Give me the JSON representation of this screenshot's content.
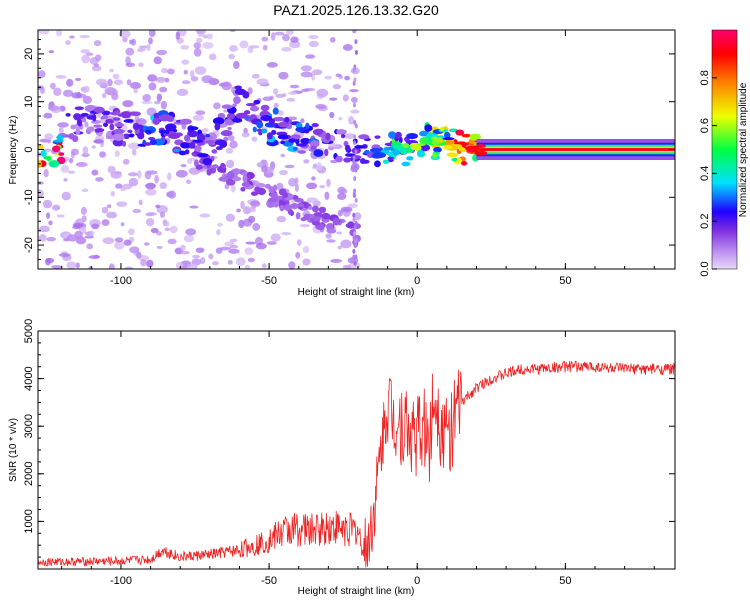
{
  "title": "PAZ1.2025.126.13.32.G20",
  "chart_data": [
    {
      "type": "heatmap",
      "xlabel": "Height of straight line (km)",
      "ylabel": "Frequency (Hz)",
      "xlim": [
        -128,
        87
      ],
      "ylim": [
        -25,
        25
      ],
      "xticks": [
        -100,
        -50,
        0,
        50
      ],
      "yticks": [
        -20,
        -10,
        0,
        10,
        20
      ],
      "colorbar": {
        "label": "Normalized spectral amplitude",
        "range": [
          0,
          1
        ],
        "ticks": [
          0.0,
          0.2,
          0.4,
          0.6,
          0.8
        ],
        "colors": [
          "#e8d8f8",
          "#b888f0",
          "#8030e0",
          "#2000ff",
          "#00e0ff",
          "#00ff40",
          "#f0ff00",
          "#ff8000",
          "#ff0000",
          "#ff0070"
        ]
      },
      "ridge": [
        {
          "x": -120,
          "f": 6,
          "a": 0.25
        },
        {
          "x": -105,
          "f": 5,
          "a": 0.25
        },
        {
          "x": -95,
          "f": 4,
          "a": 0.3
        },
        {
          "x": -88,
          "f": 5,
          "a": 0.4
        },
        {
          "x": -80,
          "f": 3,
          "a": 0.35
        },
        {
          "x": -70,
          "f": 0,
          "a": 0.3
        },
        {
          "x": -60,
          "f": 10,
          "a": 0.3
        },
        {
          "x": -50,
          "f": 5,
          "a": 0.4
        },
        {
          "x": -40,
          "f": 3,
          "a": 0.35
        },
        {
          "x": -30,
          "f": 2,
          "a": 0.3
        },
        {
          "x": -20,
          "f": 0,
          "a": 0.3
        },
        {
          "x": -15,
          "f": -1,
          "a": 0.35
        },
        {
          "x": -5,
          "f": 0,
          "a": 0.55
        },
        {
          "x": 0,
          "f": 1,
          "a": 0.6
        },
        {
          "x": 5,
          "f": 2,
          "a": 0.55
        },
        {
          "x": 10,
          "f": 1,
          "a": 0.75
        },
        {
          "x": 15,
          "f": 0.5,
          "a": 0.85
        },
        {
          "x": 20,
          "f": 0,
          "a": 0.9
        },
        {
          "x": 87,
          "f": 0,
          "a": 0.9
        }
      ]
    },
    {
      "type": "line",
      "xlabel": "Height of straight line (km)",
      "ylabel": "SNR (10 * v/v)",
      "xlim": [
        -128,
        87
      ],
      "ylim": [
        0,
        5000
      ],
      "xticks": [
        -100,
        -50,
        0,
        50
      ],
      "yticks": [
        1000,
        2000,
        3000,
        4000,
        5000
      ],
      "color": "#ee2222",
      "series": [
        {
          "x": [
            -128,
            -120,
            -110,
            -100,
            -90,
            -86,
            -80,
            -70,
            -60,
            -55,
            -50,
            -45,
            -40,
            -35,
            -30,
            -25,
            -20,
            -18,
            -15,
            -12,
            -10,
            -8,
            -6,
            -4,
            -2,
            0,
            2,
            4,
            6,
            8,
            10,
            12,
            15,
            20,
            25,
            30,
            35,
            40,
            50,
            60,
            70,
            80,
            87
          ],
          "y": [
            150,
            150,
            160,
            170,
            200,
            400,
            250,
            300,
            400,
            500,
            600,
            800,
            850,
            800,
            900,
            850,
            800,
            300,
            1000,
            2600,
            3500,
            3200,
            3100,
            3000,
            2800,
            2800,
            3000,
            2600,
            3800,
            3000,
            2800,
            3000,
            3500,
            3800,
            4000,
            4100,
            4200,
            4200,
            4250,
            4250,
            4200,
            4200,
            4200
          ]
        }
      ]
    }
  ]
}
